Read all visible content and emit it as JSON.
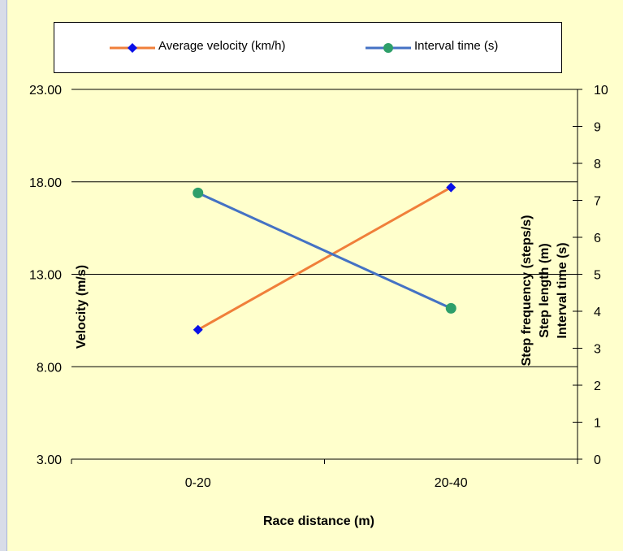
{
  "chart_data": {
    "type": "line",
    "categories": [
      "0-20",
      "20-40"
    ],
    "xlabel": "Race distance (m)",
    "ylabel": "Velocity (m/s)",
    "ylim": [
      3,
      23
    ],
    "yticks": [
      "3.00",
      "8.00",
      "13.00",
      "18.00",
      "23.00"
    ],
    "y2label_lines": [
      "Step frequency (steps/s)",
      "Step length (m)",
      "Interval time (s)"
    ],
    "y2lim": [
      0,
      10
    ],
    "y2ticks": [
      "0",
      "1",
      "2",
      "3",
      "4",
      "5",
      "6",
      "7",
      "8",
      "9",
      "10"
    ],
    "grid": true,
    "legend_position": "top",
    "series": [
      {
        "name": "Average velocity (km/h)",
        "axis": "left",
        "values": [
          10.0,
          17.7
        ],
        "line_color": "#f07f3a",
        "marker": "diamond",
        "marker_color": "#0a10e8"
      },
      {
        "name": "Interval time (s)",
        "axis": "right",
        "values": [
          7.2,
          4.08
        ],
        "line_color": "#4472c4",
        "marker": "circle",
        "marker_color": "#2e9f6a"
      }
    ]
  },
  "colors": {
    "background": "#ffffcc",
    "page_edge": "#d8dce8",
    "gridline": "#000000"
  }
}
